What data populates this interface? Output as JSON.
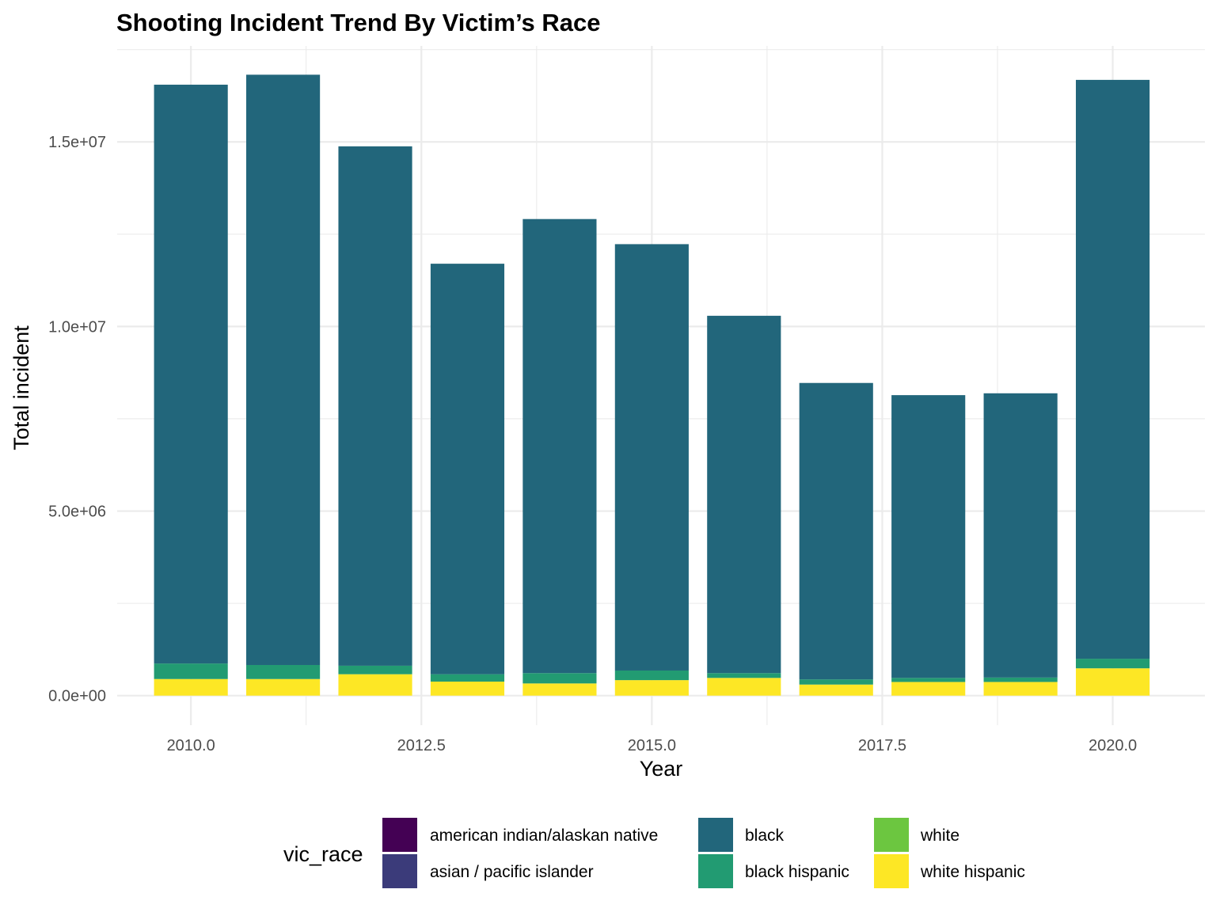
{
  "chart_data": {
    "type": "bar",
    "stacked": true,
    "title": "Shooting Incident Trend By Victim’s Race",
    "xlabel": "Year",
    "ylabel": "Total incident",
    "x": [
      2010,
      2011,
      2012,
      2013,
      2014,
      2015,
      2016,
      2017,
      2018,
      2019,
      2020
    ],
    "xlim": [
      2009.2,
      2021.0
    ],
    "ylim": [
      -800000,
      17600000
    ],
    "x_ticks": [
      2010.0,
      2012.5,
      2015.0,
      2017.5,
      2020.0
    ],
    "x_tick_labels": [
      "2010.0",
      "2012.5",
      "2015.0",
      "2017.5",
      "2020.0"
    ],
    "y_ticks": [
      0,
      5000000,
      10000000,
      15000000
    ],
    "y_tick_labels": [
      "0.0e+00",
      "5.0e+06",
      "1.0e+07",
      "1.5e+07"
    ],
    "grid": true,
    "legend_position": "bottom",
    "legend_title": "vic_race",
    "legend": [
      {
        "name": "american indian/alaskan native",
        "color": "#440154"
      },
      {
        "name": "asian / pacific islander",
        "color": "#3b3b7a"
      },
      {
        "name": "black",
        "color": "#22667b"
      },
      {
        "name": "black hispanic",
        "color": "#229b72"
      },
      {
        "name": "white",
        "color": "#6cc640"
      },
      {
        "name": "white hispanic",
        "color": "#fde725"
      }
    ],
    "series": [
      {
        "name": "white hispanic",
        "color": "#fde725",
        "values": [
          450000,
          450000,
          580000,
          380000,
          330000,
          420000,
          480000,
          300000,
          370000,
          370000,
          740000
        ]
      },
      {
        "name": "black hispanic",
        "color": "#229b72",
        "values": [
          420000,
          380000,
          230000,
          200000,
          280000,
          260000,
          130000,
          140000,
          110000,
          120000,
          260000
        ]
      },
      {
        "name": "black",
        "color": "#22667b",
        "values": [
          15680000,
          15990000,
          14070000,
          11120000,
          12300000,
          11550000,
          9680000,
          8030000,
          7660000,
          7700000,
          15680000
        ]
      }
    ]
  }
}
